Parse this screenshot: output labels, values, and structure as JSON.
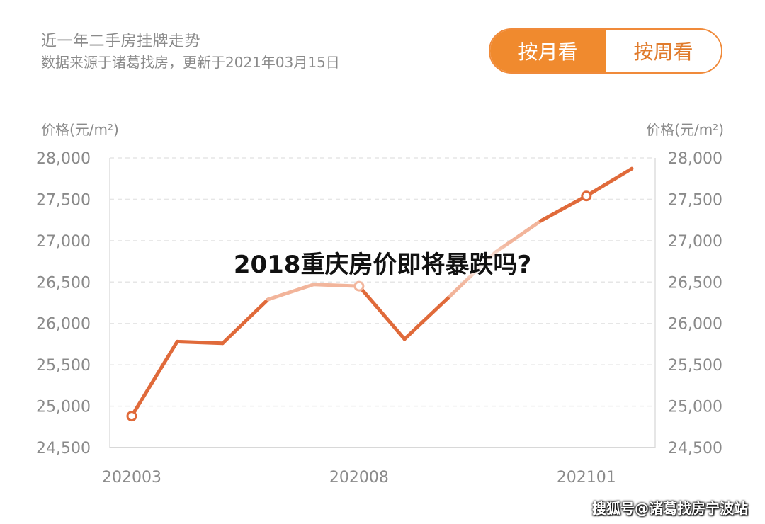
{
  "header": {
    "title": "近一年二手房挂牌走势",
    "subtitle": "数据来源于诸葛找房，更新于2021年03月15日"
  },
  "toggle": {
    "month_label": "按月看",
    "week_label": "按周看",
    "active": "month"
  },
  "overlay_title": "2018重庆房价即将暴跌吗?",
  "watermark": "搜狐号@诸葛找房宁波站",
  "colors": {
    "line": "#e06a3a",
    "line_faded": "#f2b49a",
    "accent": "#f08a2e",
    "axis_text": "#8a8a8a",
    "grid": "#e6e6e6"
  },
  "chart_data": {
    "type": "line",
    "title": "近一年二手房挂牌走势",
    "ylabel_left": "价格(元/m²)",
    "ylabel_right": "价格(元/m²)",
    "ylim": [
      24500,
      28000
    ],
    "yticks": [
      28000,
      27500,
      27000,
      26500,
      26000,
      25500,
      25000,
      24500
    ],
    "ytick_labels": [
      "28,000",
      "27,500",
      "27,000",
      "26,500",
      "26,000",
      "25,500",
      "25,000",
      "24,500"
    ],
    "x": [
      "202003",
      "202004",
      "202005",
      "202006",
      "202007",
      "202008",
      "202009",
      "202010",
      "202011",
      "202012",
      "202101",
      "202102"
    ],
    "xtick_labels": [
      "202003",
      "202008",
      "202101"
    ],
    "series": [
      {
        "values": [
          24880,
          25780,
          25760,
          26290,
          26470,
          26450,
          25810,
          26330,
          26860,
          27240,
          27540,
          27870
        ],
        "marked": [
          "202003",
          "202008",
          "202101"
        ]
      }
    ],
    "grid": true,
    "grid_style": "dashed"
  }
}
